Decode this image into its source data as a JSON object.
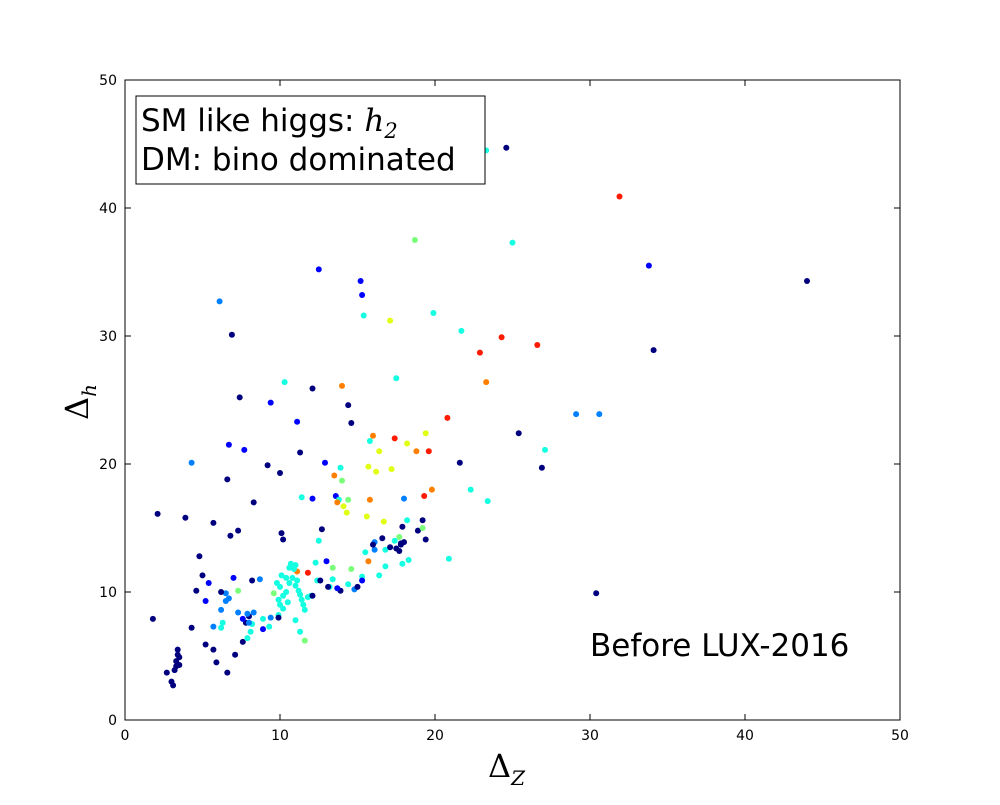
{
  "chart_data": {
    "type": "scatter",
    "xlabel": {
      "base": "Δ",
      "sub": "Z"
    },
    "ylabel": {
      "base": "Δ",
      "sub": "h"
    },
    "xlim": [
      0,
      50
    ],
    "ylim": [
      0,
      50
    ],
    "xticks": [
      0,
      10,
      20,
      30,
      40,
      50
    ],
    "yticks": [
      0,
      10,
      20,
      30,
      40,
      50
    ],
    "x_tick_labels": [
      "0",
      "10",
      "20",
      "30",
      "40",
      "50"
    ],
    "y_tick_labels": [
      "0",
      "10",
      "20",
      "30",
      "40",
      "50"
    ],
    "grid": false,
    "colormap": [
      "#00007f",
      "#0000ff",
      "#0080ff",
      "#15ffe1",
      "#7bff7b",
      "#e1ff15",
      "#ff8000",
      "#ff1a00"
    ],
    "legend_box": {
      "line1": "SM like higgs: ",
      "line1_math": {
        "base": "h",
        "sub": "2"
      },
      "line2": "DM: bino dominated"
    },
    "annotation": "Before LUX-2016",
    "points": [
      [
        1.8,
        7.9,
        0
      ],
      [
        2.1,
        16.1,
        0
      ],
      [
        2.7,
        3.7,
        0
      ],
      [
        3.0,
        3.0,
        0
      ],
      [
        3.1,
        2.7,
        0
      ],
      [
        3.2,
        3.9,
        0
      ],
      [
        3.3,
        4.2,
        0
      ],
      [
        3.3,
        4.6,
        0
      ],
      [
        3.4,
        5.1,
        0
      ],
      [
        3.4,
        5.5,
        0
      ],
      [
        3.5,
        4.3,
        0
      ],
      [
        3.5,
        4.9,
        0
      ],
      [
        3.9,
        15.8,
        0
      ],
      [
        4.3,
        7.2,
        0
      ],
      [
        4.6,
        10.1,
        0
      ],
      [
        4.8,
        12.8,
        0
      ],
      [
        5.0,
        11.3,
        0
      ],
      [
        5.2,
        9.3,
        1
      ],
      [
        5.2,
        5.9,
        0
      ],
      [
        5.4,
        10.7,
        1
      ],
      [
        5.7,
        15.4,
        0
      ],
      [
        5.7,
        5.5,
        0
      ],
      [
        5.9,
        4.5,
        0
      ],
      [
        6.2,
        8.6,
        2
      ],
      [
        6.5,
        9.3,
        2
      ],
      [
        6.6,
        18.8,
        0
      ],
      [
        6.7,
        21.5,
        1
      ],
      [
        6.8,
        14.4,
        0
      ],
      [
        6.9,
        30.1,
        0
      ],
      [
        7.0,
        11.1,
        1
      ],
      [
        7.1,
        5.1,
        0
      ],
      [
        7.3,
        14.8,
        0
      ],
      [
        7.4,
        25.2,
        0
      ],
      [
        7.6,
        6.1,
        0
      ],
      [
        7.7,
        21.1,
        1
      ],
      [
        7.8,
        7.6,
        0
      ],
      [
        8.0,
        8.1,
        0
      ],
      [
        8.2,
        10.9,
        0
      ],
      [
        8.3,
        17.0,
        0
      ],
      [
        8.7,
        11.0,
        2
      ],
      [
        9.2,
        19.9,
        0
      ],
      [
        9.4,
        24.8,
        1
      ],
      [
        10.0,
        19.3,
        0
      ],
      [
        10.1,
        14.6,
        0
      ],
      [
        10.2,
        14.1,
        0
      ],
      [
        11.1,
        23.3,
        1
      ],
      [
        11.3,
        20.9,
        0
      ],
      [
        12.1,
        25.9,
        0
      ],
      [
        12.1,
        17.3,
        1
      ],
      [
        12.5,
        35.2,
        1
      ],
      [
        12.7,
        14.9,
        0
      ],
      [
        12.9,
        20.1,
        1
      ],
      [
        13.6,
        17.5,
        1
      ],
      [
        14.4,
        24.6,
        0
      ],
      [
        14.6,
        23.2,
        0
      ],
      [
        15.2,
        34.3,
        1
      ],
      [
        15.3,
        33.2,
        1
      ],
      [
        17.8,
        13.8,
        0
      ],
      [
        17.9,
        15.1,
        0
      ],
      [
        18.0,
        17.3,
        2
      ],
      [
        18.9,
        14.8,
        0
      ],
      [
        19.2,
        15.6,
        0
      ],
      [
        19.4,
        14.1,
        0
      ],
      [
        21.6,
        20.1,
        0
      ],
      [
        24.6,
        44.7,
        0
      ],
      [
        25.4,
        22.4,
        0
      ],
      [
        26.9,
        19.7,
        0
      ],
      [
        29.1,
        23.9,
        2
      ],
      [
        30.4,
        9.9,
        0
      ],
      [
        30.6,
        23.9,
        2
      ],
      [
        33.8,
        35.5,
        1
      ],
      [
        34.1,
        28.9,
        0
      ],
      [
        44.0,
        34.3,
        0
      ],
      [
        6.1,
        32.7,
        2
      ],
      [
        4.3,
        20.1,
        2
      ],
      [
        10.3,
        26.4,
        3
      ],
      [
        11.4,
        17.4,
        3
      ],
      [
        12.5,
        14.0,
        3
      ],
      [
        13.8,
        17.2,
        3
      ],
      [
        13.9,
        19.7,
        3
      ],
      [
        15.4,
        31.6,
        3
      ],
      [
        15.8,
        21.8,
        3
      ],
      [
        16.1,
        13.9,
        2
      ],
      [
        16.8,
        12.0,
        3
      ],
      [
        17.5,
        26.7,
        3
      ],
      [
        17.9,
        12.2,
        3
      ],
      [
        18.3,
        12.5,
        3
      ],
      [
        19.9,
        31.8,
        3
      ],
      [
        20.9,
        12.6,
        3
      ],
      [
        21.7,
        30.4,
        3
      ],
      [
        22.3,
        18.0,
        3
      ],
      [
        23.3,
        44.5,
        3
      ],
      [
        23.4,
        17.1,
        3
      ],
      [
        25.0,
        37.3,
        3
      ],
      [
        27.1,
        21.1,
        3
      ],
      [
        18.7,
        37.5,
        4
      ],
      [
        7.3,
        10.1,
        4
      ],
      [
        11.1,
        11.6,
        6
      ],
      [
        11.6,
        6.2,
        4
      ],
      [
        13.4,
        11.9,
        4
      ],
      [
        14.0,
        18.7,
        4
      ],
      [
        14.4,
        17.2,
        4
      ],
      [
        15.6,
        15.9,
        5
      ],
      [
        15.7,
        19.8,
        5
      ],
      [
        16.2,
        19.4,
        5
      ],
      [
        16.4,
        21.0,
        5
      ],
      [
        16.7,
        15.5,
        5
      ],
      [
        17.1,
        31.2,
        5
      ],
      [
        17.2,
        19.6,
        5
      ],
      [
        17.7,
        14.3,
        4
      ],
      [
        18.2,
        21.6,
        5
      ],
      [
        19.2,
        15.0,
        4
      ],
      [
        19.4,
        22.4,
        5
      ],
      [
        16.0,
        22.2,
        6
      ],
      [
        13.5,
        19.1,
        6
      ],
      [
        13.7,
        17.0,
        6
      ],
      [
        14.1,
        16.7,
        5
      ],
      [
        14.3,
        16.2,
        5
      ],
      [
        15.7,
        12.4,
        6
      ],
      [
        15.8,
        17.2,
        6
      ],
      [
        17.4,
        22.0,
        7
      ],
      [
        18.8,
        21.0,
        6
      ],
      [
        19.3,
        17.5,
        7
      ],
      [
        19.8,
        18.0,
        6
      ],
      [
        19.6,
        21.0,
        7
      ],
      [
        20.8,
        23.6,
        7
      ],
      [
        22.9,
        28.7,
        7
      ],
      [
        23.3,
        26.4,
        6
      ],
      [
        24.3,
        29.9,
        7
      ],
      [
        26.6,
        29.3,
        7
      ],
      [
        31.9,
        40.9,
        7
      ],
      [
        14.0,
        26.1,
        6
      ],
      [
        11.8,
        11.5,
        7
      ],
      [
        10.6,
        11.9,
        3
      ],
      [
        10.7,
        12.2,
        3
      ],
      [
        10.8,
        11.1,
        3
      ],
      [
        10.9,
        11.8,
        3
      ],
      [
        11.0,
        12.1,
        3
      ],
      [
        11.0,
        10.5,
        3
      ],
      [
        11.1,
        10.9,
        3
      ],
      [
        11.2,
        10.1,
        3
      ],
      [
        11.3,
        9.8,
        3
      ],
      [
        11.4,
        9.4,
        3
      ],
      [
        11.5,
        9.0,
        3
      ],
      [
        11.6,
        8.6,
        3
      ],
      [
        10.4,
        10.0,
        3
      ],
      [
        10.2,
        9.7,
        3
      ],
      [
        10.0,
        10.4,
        3
      ],
      [
        9.9,
        9.4,
        3
      ],
      [
        10.0,
        9.0,
        3
      ],
      [
        10.2,
        8.7,
        3
      ],
      [
        10.5,
        9.2,
        3
      ],
      [
        10.6,
        10.7,
        3
      ],
      [
        9.8,
        10.7,
        3
      ],
      [
        10.4,
        11.1,
        3
      ],
      [
        9.6,
        9.9,
        4
      ],
      [
        9.9,
        8.2,
        3
      ],
      [
        10.1,
        11.3,
        3
      ],
      [
        6.2,
        7.2,
        3
      ],
      [
        6.3,
        7.6,
        3
      ],
      [
        7.9,
        6.4,
        3
      ],
      [
        8.1,
        6.9,
        3
      ],
      [
        8.2,
        7.5,
        3
      ],
      [
        8.9,
        7.9,
        3
      ],
      [
        9.3,
        7.3,
        3
      ],
      [
        11.0,
        7.8,
        3
      ],
      [
        11.3,
        6.9,
        3
      ],
      [
        11.8,
        9.6,
        3
      ],
      [
        12.0,
        9.7,
        3
      ],
      [
        12.3,
        12.3,
        3
      ],
      [
        12.4,
        10.9,
        3
      ],
      [
        13.2,
        10.4,
        3
      ],
      [
        13.4,
        11.0,
        3
      ],
      [
        14.4,
        10.6,
        3
      ],
      [
        14.6,
        11.8,
        4
      ],
      [
        15.3,
        11.2,
        3
      ],
      [
        15.5,
        13.1,
        3
      ],
      [
        16.4,
        11.3,
        3
      ],
      [
        16.8,
        13.3,
        3
      ],
      [
        17.4,
        14.0,
        3
      ],
      [
        18.2,
        15.6,
        3
      ],
      [
        7.9,
        8.3,
        2
      ],
      [
        8.0,
        7.6,
        2
      ],
      [
        7.3,
        8.4,
        2
      ],
      [
        9.4,
        8.0,
        2
      ],
      [
        5.7,
        7.3,
        2
      ],
      [
        6.5,
        9.9,
        2
      ],
      [
        6.7,
        9.5,
        2
      ],
      [
        8.3,
        8.4,
        2
      ],
      [
        14.8,
        10.2,
        2
      ],
      [
        16.1,
        13.3,
        2
      ],
      [
        6.2,
        10.0,
        0
      ],
      [
        6.6,
        3.7,
        0
      ],
      [
        9.9,
        8.0,
        0
      ],
      [
        12.1,
        9.7,
        0
      ],
      [
        12.6,
        10.9,
        0
      ],
      [
        13.1,
        10.4,
        0
      ],
      [
        13.9,
        10.1,
        0
      ],
      [
        15.0,
        10.4,
        0
      ],
      [
        16.0,
        13.7,
        0
      ],
      [
        16.6,
        14.2,
        0
      ],
      [
        17.1,
        13.5,
        0
      ],
      [
        17.5,
        13.4,
        0
      ],
      [
        17.8,
        13.7,
        0
      ],
      [
        18.0,
        13.9,
        0
      ],
      [
        17.7,
        13.2,
        0
      ],
      [
        7.6,
        7.9,
        1
      ],
      [
        8.9,
        7.1,
        1
      ],
      [
        13.7,
        10.3,
        1
      ],
      [
        15.3,
        10.9,
        1
      ],
      [
        13.0,
        12.4,
        1
      ]
    ]
  }
}
